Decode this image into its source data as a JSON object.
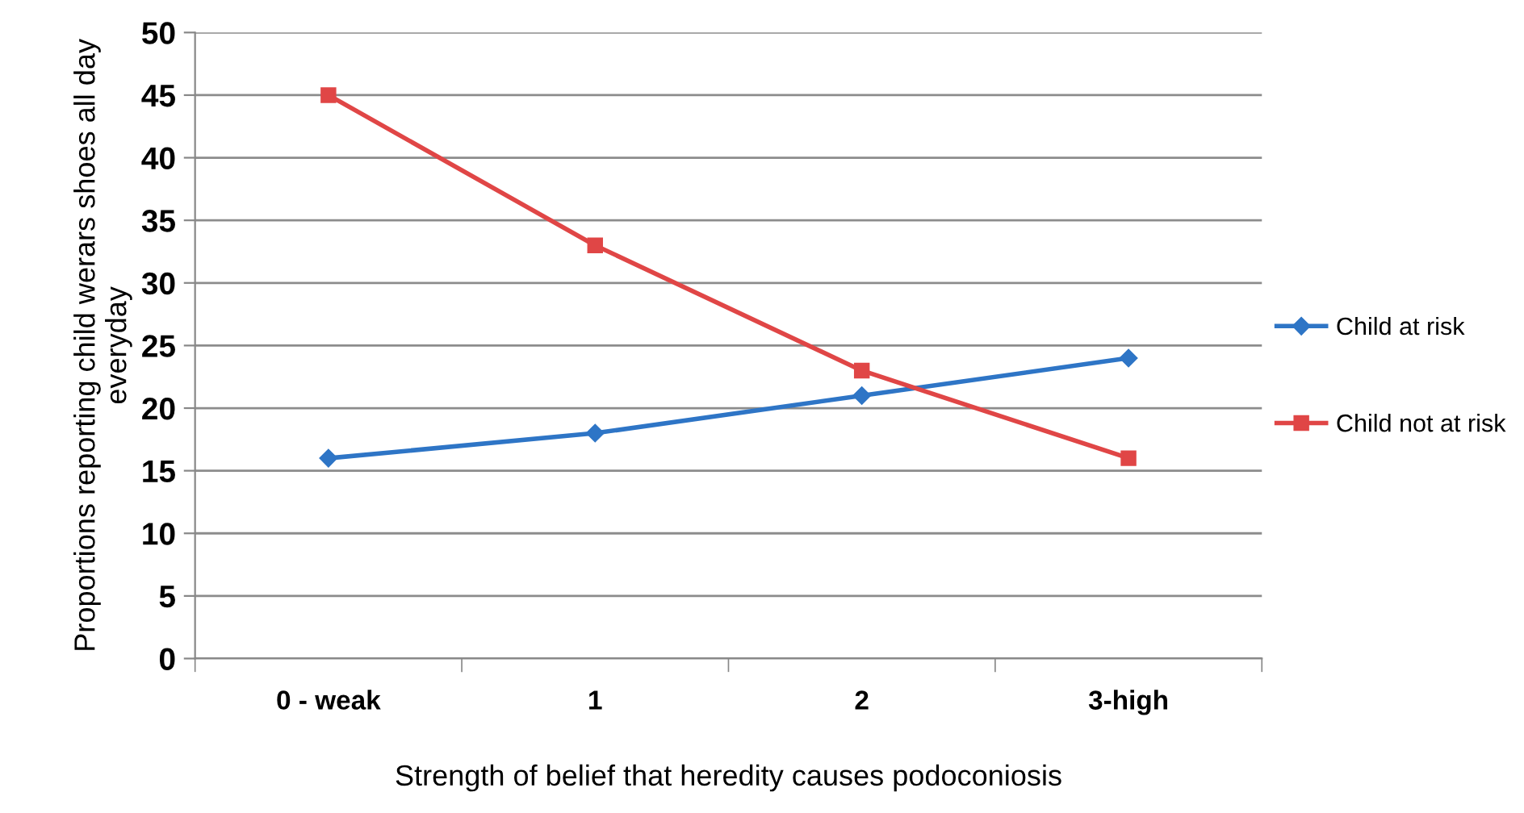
{
  "chart_data": {
    "type": "line",
    "xlabel": "Strength of belief that heredity causes podoconiosis",
    "ylabel": "Proportions reporting child werars shoes all day everyday",
    "categories": [
      "0 - weak",
      "1",
      "2",
      "3-high"
    ],
    "series": [
      {
        "name": "Child at risk",
        "color": "#2e75c6",
        "marker": "diamond",
        "values": [
          16,
          18,
          21,
          24
        ]
      },
      {
        "name": "Child not at risk",
        "color": "#e04646",
        "marker": "square",
        "values": [
          45,
          33,
          23,
          16
        ]
      }
    ],
    "ylim": [
      0,
      50
    ],
    "yticks": [
      0,
      5,
      10,
      15,
      20,
      25,
      30,
      35,
      40,
      45,
      50
    ],
    "grid": "y",
    "legend": "right"
  }
}
